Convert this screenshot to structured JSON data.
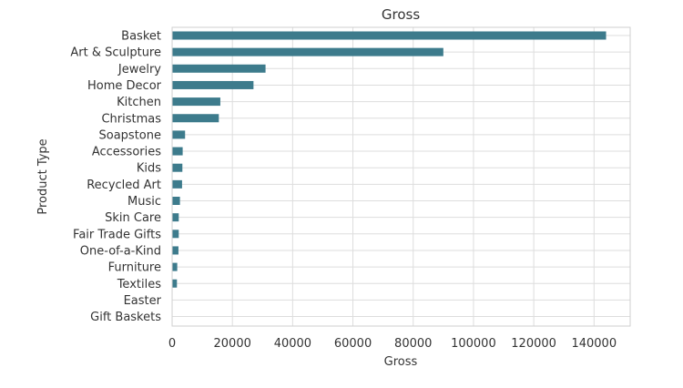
{
  "chart_data": {
    "type": "bar",
    "orientation": "horizontal",
    "title": "Gross",
    "xlabel": "Gross",
    "ylabel": "Product Type",
    "categories": [
      "Basket",
      "Art & Sculpture",
      "Jewelry",
      "Home Decor",
      "Kitchen",
      "Christmas",
      "Soapstone",
      "Accessories",
      "Kids",
      "Recycled Art",
      "Music",
      "Skin Care",
      "Fair Trade Gifts",
      "One-of-a-Kind",
      "Furniture",
      "Textiles",
      "Easter",
      "Gift Baskets"
    ],
    "values": [
      144000,
      90000,
      31000,
      27000,
      16000,
      15500,
      4300,
      3500,
      3400,
      3300,
      2600,
      2200,
      2200,
      2100,
      1700,
      1600,
      0,
      0
    ],
    "xlim": [
      0,
      152000
    ],
    "xticks": [
      0,
      20000,
      40000,
      60000,
      80000,
      100000,
      120000,
      140000
    ],
    "xtick_labels": [
      "0",
      "20000",
      "40000",
      "60000",
      "80000",
      "100000",
      "120000",
      "140000"
    ],
    "grid": true,
    "bar_color": "#3d7b8c"
  }
}
